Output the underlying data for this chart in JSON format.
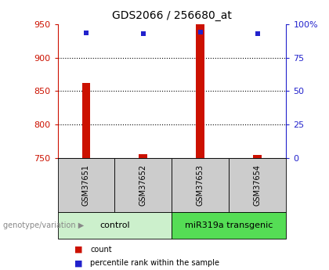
{
  "title": "GDS2066 / 256680_at",
  "samples": [
    "GSM37651",
    "GSM37652",
    "GSM37653",
    "GSM37654"
  ],
  "count_values": [
    862,
    756,
    950,
    754
  ],
  "percentile_values": [
    93.5,
    93.0,
    94.0,
    93.0
  ],
  "y_min": 750,
  "y_max": 950,
  "y_ticks": [
    750,
    800,
    850,
    900,
    950
  ],
  "right_y_ticks": [
    0,
    25,
    50,
    75,
    100
  ],
  "right_y_labels": [
    "0",
    "25",
    "50",
    "75",
    "100%"
  ],
  "bar_color": "#cc1100",
  "dot_color": "#2222cc",
  "groups": [
    {
      "label": "control",
      "samples": [
        0,
        1
      ],
      "color": "#ccf0cc"
    },
    {
      "label": "miR319a transgenic",
      "samples": [
        2,
        3
      ],
      "color": "#55dd55"
    }
  ],
  "group_label_text": "genotype/variation ▶",
  "legend_count_label": "count",
  "legend_percentile_label": "percentile rank within the sample",
  "left_axis_color": "#cc1100",
  "right_axis_color": "#2222cc",
  "sample_box_color": "#cccccc",
  "bar_width": 0.15
}
